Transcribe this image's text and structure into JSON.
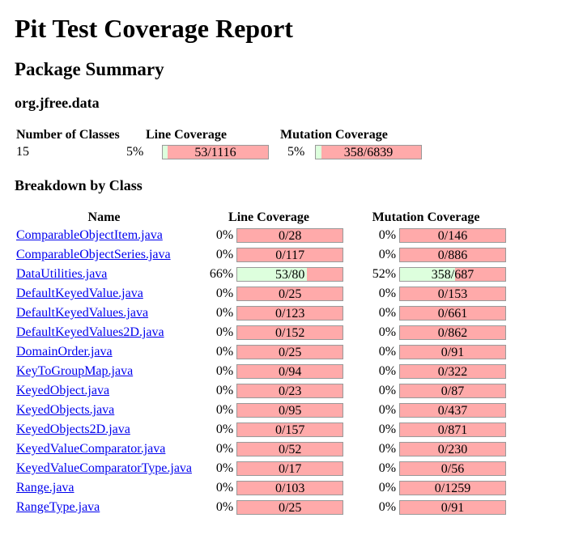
{
  "title": "Pit Test Coverage Report",
  "package_summary_heading": "Package Summary",
  "package_name": "org.jfree.data",
  "summary": {
    "headers": {
      "classes": "Number of Classes",
      "line": "Line Coverage",
      "mutation": "Mutation Coverage"
    },
    "classes": "15",
    "line_pct": "5%",
    "line_text": "53/1116",
    "line_fraction": 0.047,
    "mutation_pct": "5%",
    "mutation_text": "358/6839",
    "mutation_fraction": 0.052
  },
  "breakdown_heading": "Breakdown by Class",
  "breakdown": {
    "headers": {
      "name": "Name",
      "line": "Line Coverage",
      "mutation": "Mutation Coverage"
    },
    "rows": [
      {
        "name": "ComparableObjectItem.java",
        "line_pct": "0%",
        "line_text": "0/28",
        "line_fraction": 0,
        "mut_pct": "0%",
        "mut_text": "0/146",
        "mut_fraction": 0
      },
      {
        "name": "ComparableObjectSeries.java",
        "line_pct": "0%",
        "line_text": "0/117",
        "line_fraction": 0,
        "mut_pct": "0%",
        "mut_text": "0/886",
        "mut_fraction": 0
      },
      {
        "name": "DataUtilities.java",
        "line_pct": "66%",
        "line_text": "53/80",
        "line_fraction": 0.66,
        "mut_pct": "52%",
        "mut_text": "358/687",
        "mut_fraction": 0.52
      },
      {
        "name": "DefaultKeyedValue.java",
        "line_pct": "0%",
        "line_text": "0/25",
        "line_fraction": 0,
        "mut_pct": "0%",
        "mut_text": "0/153",
        "mut_fraction": 0
      },
      {
        "name": "DefaultKeyedValues.java",
        "line_pct": "0%",
        "line_text": "0/123",
        "line_fraction": 0,
        "mut_pct": "0%",
        "mut_text": "0/661",
        "mut_fraction": 0
      },
      {
        "name": "DefaultKeyedValues2D.java",
        "line_pct": "0%",
        "line_text": "0/152",
        "line_fraction": 0,
        "mut_pct": "0%",
        "mut_text": "0/862",
        "mut_fraction": 0
      },
      {
        "name": "DomainOrder.java",
        "line_pct": "0%",
        "line_text": "0/25",
        "line_fraction": 0,
        "mut_pct": "0%",
        "mut_text": "0/91",
        "mut_fraction": 0
      },
      {
        "name": "KeyToGroupMap.java",
        "line_pct": "0%",
        "line_text": "0/94",
        "line_fraction": 0,
        "mut_pct": "0%",
        "mut_text": "0/322",
        "mut_fraction": 0
      },
      {
        "name": "KeyedObject.java",
        "line_pct": "0%",
        "line_text": "0/23",
        "line_fraction": 0,
        "mut_pct": "0%",
        "mut_text": "0/87",
        "mut_fraction": 0
      },
      {
        "name": "KeyedObjects.java",
        "line_pct": "0%",
        "line_text": "0/95",
        "line_fraction": 0,
        "mut_pct": "0%",
        "mut_text": "0/437",
        "mut_fraction": 0
      },
      {
        "name": "KeyedObjects2D.java",
        "line_pct": "0%",
        "line_text": "0/157",
        "line_fraction": 0,
        "mut_pct": "0%",
        "mut_text": "0/871",
        "mut_fraction": 0
      },
      {
        "name": "KeyedValueComparator.java",
        "line_pct": "0%",
        "line_text": "0/52",
        "line_fraction": 0,
        "mut_pct": "0%",
        "mut_text": "0/230",
        "mut_fraction": 0
      },
      {
        "name": "KeyedValueComparatorType.java",
        "line_pct": "0%",
        "line_text": "0/17",
        "line_fraction": 0,
        "mut_pct": "0%",
        "mut_text": "0/56",
        "mut_fraction": 0
      },
      {
        "name": "Range.java",
        "line_pct": "0%",
        "line_text": "0/103",
        "line_fraction": 0,
        "mut_pct": "0%",
        "mut_text": "0/1259",
        "mut_fraction": 0
      },
      {
        "name": "RangeType.java",
        "line_pct": "0%",
        "line_text": "0/25",
        "line_fraction": 0,
        "mut_pct": "0%",
        "mut_text": "0/91",
        "mut_fraction": 0
      }
    ]
  }
}
